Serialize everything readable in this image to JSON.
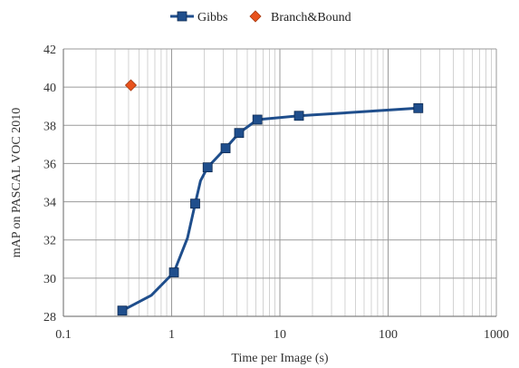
{
  "chart_data": {
    "type": "line",
    "xlabel": "Time per Image (s)",
    "ylabel": "mAP on PASCAL VOC 2010",
    "xscale": "log",
    "xlim": [
      0.1,
      1000
    ],
    "ylim": [
      28,
      42
    ],
    "x_ticks": [
      "0.1",
      "1",
      "10",
      "100",
      "1000"
    ],
    "y_ticks": [
      "28",
      "30",
      "32",
      "34",
      "36",
      "38",
      "40",
      "42"
    ],
    "grid": true,
    "legend_position": "top",
    "series": [
      {
        "name": "Gibbs",
        "color": "#1f4e8c",
        "marker": "square",
        "line_x": [
          0.35,
          0.65,
          1.05,
          1.4,
          1.65,
          1.85,
          2.15,
          3.15,
          4.2,
          6.2,
          15.0,
          190.0
        ],
        "line_y": [
          28.3,
          29.1,
          30.3,
          32.1,
          33.9,
          35.1,
          35.8,
          36.8,
          37.6,
          38.3,
          38.5,
          38.9
        ],
        "marker_x": [
          0.35,
          1.05,
          1.65,
          2.15,
          3.15,
          4.2,
          6.2,
          15.0,
          190.0
        ],
        "marker_y": [
          28.3,
          30.3,
          33.9,
          35.8,
          36.8,
          37.6,
          38.3,
          38.5,
          38.9
        ]
      },
      {
        "name": "Branch&Bound",
        "color": "#e8521c",
        "marker": "diamond",
        "marker_x": [
          0.42
        ],
        "marker_y": [
          40.1
        ]
      }
    ]
  }
}
